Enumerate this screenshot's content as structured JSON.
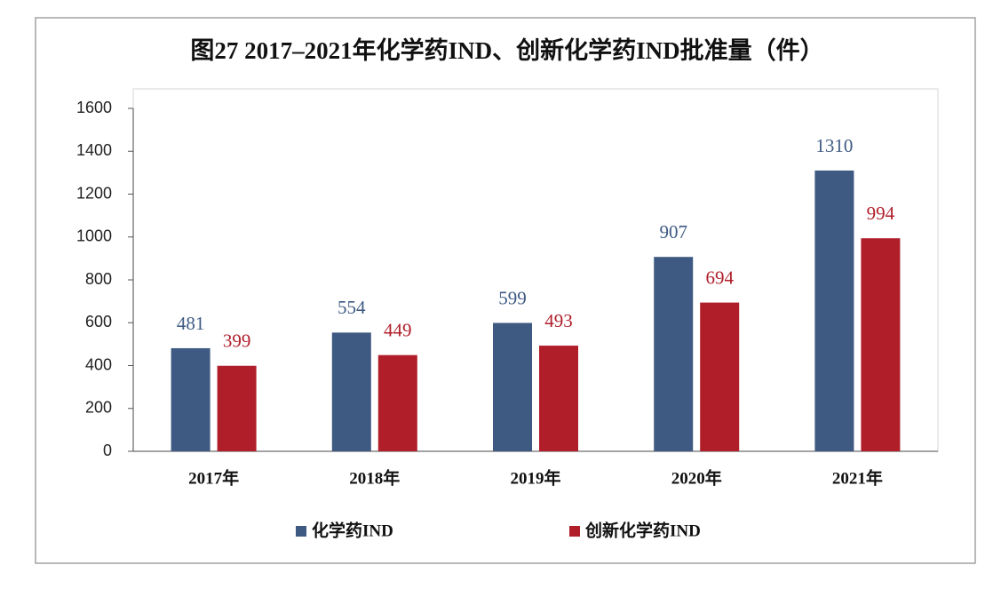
{
  "chart_data": {
    "type": "bar",
    "title": "图27 2017–2021年化学药IND、创新化学药IND批准量（件）",
    "categories": [
      "2017年",
      "2018年",
      "2019年",
      "2020年",
      "2021年"
    ],
    "series": [
      {
        "name": "化学药IND",
        "color": "#3e5a82",
        "values": [
          481,
          554,
          599,
          907,
          1310
        ]
      },
      {
        "name": "创新化学药IND",
        "color": "#b01e2a",
        "values": [
          399,
          449,
          493,
          694,
          994
        ]
      }
    ],
    "ylim": [
      0,
      1600
    ],
    "yticks": [
      0,
      200,
      400,
      600,
      800,
      1000,
      1200,
      1400,
      1600
    ],
    "legend": "bottom"
  }
}
